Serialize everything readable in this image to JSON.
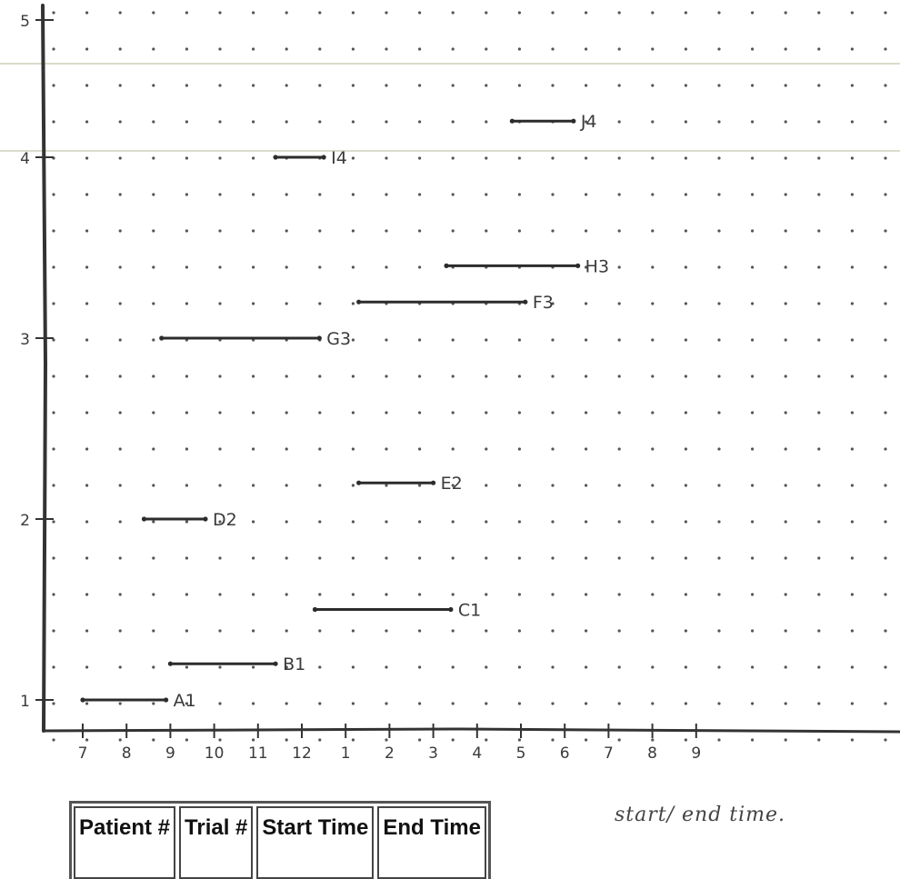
{
  "chart_data": {
    "type": "gantt",
    "xlabel": "",
    "ylabel": "",
    "x_ticks": [
      "7",
      "8",
      "9",
      "10",
      "11",
      "12",
      "1",
      "2",
      "3",
      "4",
      "5",
      "6",
      "7",
      "8",
      "9"
    ],
    "y_ticks": [
      "1",
      "2",
      "3",
      "4",
      "5"
    ],
    "xlim": [
      6.2,
      27.5
    ],
    "ylim": [
      0.7,
      5.0
    ],
    "grid": "dots",
    "segments": [
      {
        "label": "A1",
        "start": 6.6,
        "end": 8.5,
        "y": 1.0
      },
      {
        "label": "B1",
        "start": 8.6,
        "end": 11.0,
        "y": 1.2
      },
      {
        "label": "C1",
        "start": 11.9,
        "end": 15.0,
        "y": 1.5
      },
      {
        "label": "D2",
        "start": 8.0,
        "end": 9.4,
        "y": 2.0
      },
      {
        "label": "E2",
        "start": 12.9,
        "end": 14.6,
        "y": 2.2
      },
      {
        "label": "G3",
        "start": 8.4,
        "end": 12.0,
        "y": 3.0
      },
      {
        "label": "F3",
        "start": 12.9,
        "end": 16.7,
        "y": 3.2
      },
      {
        "label": "H3",
        "start": 14.9,
        "end": 17.9,
        "y": 3.4
      },
      {
        "label": "I4",
        "start": 11.0,
        "end": 12.1,
        "y": 4.0
      },
      {
        "label": "J4",
        "start": 16.4,
        "end": 17.8,
        "y": 4.2
      }
    ]
  },
  "note": "start/ end time.",
  "table": {
    "headers": [
      "Patient #",
      "Trial #",
      "Start Time",
      "End Time"
    ]
  }
}
